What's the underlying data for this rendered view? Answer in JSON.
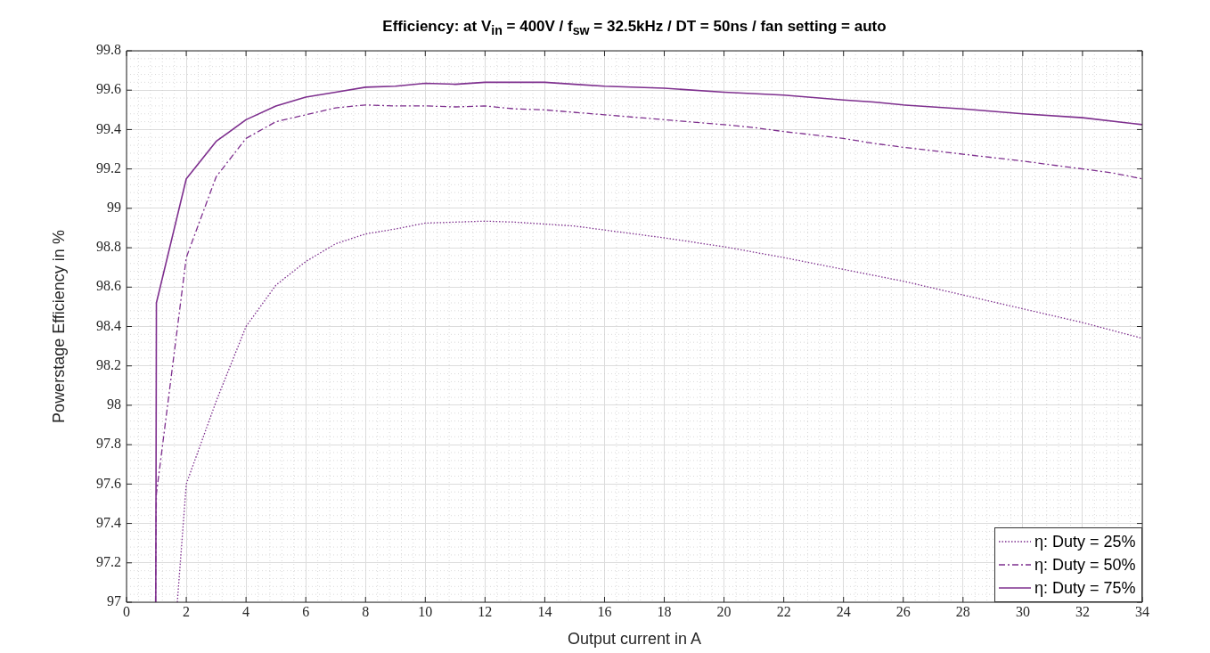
{
  "chart_data": {
    "type": "line",
    "title": "Efficiency: at V$_{in}$ = 400V / f$_{sw}$ = 32.5kHz / DT = 50ns / fan setting = auto",
    "xlabel": "Output current in A",
    "ylabel": "Powerstage Efficiency in %",
    "xlim": [
      0,
      34
    ],
    "xticks": [
      0,
      2,
      4,
      6,
      8,
      10,
      12,
      14,
      16,
      18,
      20,
      22,
      24,
      26,
      28,
      30,
      32,
      34
    ],
    "ylim": [
      97,
      99.8
    ],
    "yticks": [
      97,
      97.2,
      97.4,
      97.6,
      97.8,
      98,
      98.2,
      98.4,
      98.6,
      98.8,
      99,
      99.2,
      99.4,
      99.6,
      99.8
    ],
    "grid": true,
    "legend": "bottom right",
    "marker": "none",
    "series": [
      {
        "name": "η: Duty = 25%",
        "color": "#7e2f8e",
        "line_style": "dotted",
        "x": [
          1.7,
          2,
          3,
          4,
          5,
          6,
          7,
          8,
          9,
          10,
          12,
          13,
          14,
          15,
          16,
          18,
          20,
          22,
          24,
          26,
          28,
          30,
          32,
          34
        ],
        "values": [
          97,
          97.6,
          98.02,
          98.4,
          98.61,
          98.73,
          98.82,
          98.87,
          98.895,
          98.925,
          98.935,
          98.93,
          98.92,
          98.91,
          98.89,
          98.85,
          98.805,
          98.75,
          98.69,
          98.63,
          98.56,
          98.49,
          98.42,
          98.34
        ]
      },
      {
        "name": "η: Duty = 50%",
        "color": "#7e2f8e",
        "line_style": "dashed",
        "x": [
          0.97,
          1,
          2,
          3,
          4,
          5,
          6,
          7,
          8,
          9,
          10,
          11,
          12,
          13,
          14,
          16,
          18,
          20,
          21,
          22,
          24,
          25,
          26,
          28,
          30,
          32,
          33,
          34
        ],
        "values": [
          97,
          97.55,
          98.75,
          99.16,
          99.355,
          99.44,
          99.475,
          99.51,
          99.525,
          99.52,
          99.52,
          99.515,
          99.52,
          99.505,
          99.5,
          99.475,
          99.45,
          99.425,
          99.41,
          99.39,
          99.355,
          99.33,
          99.31,
          99.275,
          99.24,
          99.2,
          99.18,
          99.15
        ]
      },
      {
        "name": "η: Duty = 75%",
        "color": "#7e2f8e",
        "line_style": "solid",
        "x": [
          0.98,
          1,
          2,
          3,
          4,
          5,
          6,
          7,
          8,
          9,
          10,
          11,
          12,
          13,
          14,
          15,
          16,
          18,
          20,
          22,
          24,
          25,
          26,
          28,
          30,
          32,
          34
        ],
        "values": [
          97,
          98.52,
          99.15,
          99.34,
          99.45,
          99.52,
          99.565,
          99.59,
          99.615,
          99.62,
          99.635,
          99.63,
          99.64,
          99.64,
          99.64,
          99.63,
          99.62,
          99.61,
          99.59,
          99.575,
          99.55,
          99.54,
          99.525,
          99.505,
          99.48,
          99.46,
          99.425
        ]
      }
    ]
  }
}
